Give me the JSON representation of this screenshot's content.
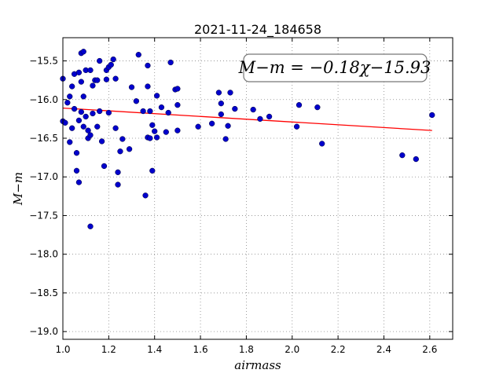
{
  "chart_data": {
    "type": "scatter",
    "title": "2021-11-24_184658",
    "xlabel": "airmass",
    "ylabel": "M−m",
    "xlim": [
      1.0,
      2.7
    ],
    "ylim": [
      -19.1,
      -15.2
    ],
    "y_inverted": true,
    "grid": true,
    "xticks": [
      1.0,
      1.2,
      1.4,
      1.6,
      1.8,
      2.0,
      2.2,
      2.4,
      2.6
    ],
    "xtick_labels": [
      "1.0",
      "1.2",
      "1.4",
      "1.6",
      "1.8",
      "2.0",
      "2.2",
      "2.4",
      "2.6"
    ],
    "yticks": [
      -15.5,
      -16.0,
      -16.5,
      -17.0,
      -17.5,
      -18.0,
      -18.5,
      -19.0
    ],
    "ytick_labels": [
      "−15.5",
      "−16.0",
      "−16.5",
      "−17.0",
      "−17.5",
      "−18.0",
      "−18.5",
      "−19.0"
    ],
    "annotation": "M−m = −0.18χ−15.93",
    "fit": {
      "slope": -0.18,
      "intercept": -15.93,
      "x_range": [
        1.0,
        2.61
      ],
      "color": "#ff0000"
    },
    "point_color": "#0000cc",
    "points": [
      [
        1.0,
        -15.73
      ],
      [
        1.0,
        -16.28
      ],
      [
        1.01,
        -16.3
      ],
      [
        1.02,
        -16.04
      ],
      [
        1.03,
        -15.96
      ],
      [
        1.03,
        -16.55
      ],
      [
        1.04,
        -15.83
      ],
      [
        1.04,
        -16.37
      ],
      [
        1.05,
        -15.67
      ],
      [
        1.05,
        -16.12
      ],
      [
        1.06,
        -16.69
      ],
      [
        1.06,
        -16.92
      ],
      [
        1.07,
        -15.65
      ],
      [
        1.07,
        -17.07
      ],
      [
        1.07,
        -16.27
      ],
      [
        1.08,
        -15.4
      ],
      [
        1.08,
        -15.77
      ],
      [
        1.08,
        -16.16
      ],
      [
        1.09,
        -15.38
      ],
      [
        1.09,
        -15.96
      ],
      [
        1.09,
        -16.35
      ],
      [
        1.1,
        -15.62
      ],
      [
        1.1,
        -16.22
      ],
      [
        1.11,
        -16.4
      ],
      [
        1.11,
        -16.5
      ],
      [
        1.12,
        -15.62
      ],
      [
        1.12,
        -16.46
      ],
      [
        1.12,
        -17.64
      ],
      [
        1.13,
        -15.82
      ],
      [
        1.13,
        -16.18
      ],
      [
        1.14,
        -15.75
      ],
      [
        1.15,
        -15.75
      ],
      [
        1.15,
        -16.35
      ],
      [
        1.16,
        -16.15
      ],
      [
        1.16,
        -15.5
      ],
      [
        1.17,
        -16.54
      ],
      [
        1.18,
        -16.86
      ],
      [
        1.19,
        -15.62
      ],
      [
        1.19,
        -15.74
      ],
      [
        1.2,
        -16.17
      ],
      [
        1.2,
        -15.58
      ],
      [
        1.21,
        -15.55
      ],
      [
        1.22,
        -15.48
      ],
      [
        1.23,
        -15.73
      ],
      [
        1.23,
        -16.37
      ],
      [
        1.24,
        -16.94
      ],
      [
        1.24,
        -17.1
      ],
      [
        1.25,
        -16.67
      ],
      [
        1.26,
        -16.51
      ],
      [
        1.29,
        -16.64
      ],
      [
        1.3,
        -15.84
      ],
      [
        1.32,
        -16.02
      ],
      [
        1.33,
        -15.42
      ],
      [
        1.35,
        -16.15
      ],
      [
        1.36,
        -17.24
      ],
      [
        1.37,
        -15.83
      ],
      [
        1.37,
        -15.56
      ],
      [
        1.37,
        -16.49
      ],
      [
        1.38,
        -16.5
      ],
      [
        1.38,
        -16.15
      ],
      [
        1.39,
        -16.33
      ],
      [
        1.39,
        -16.92
      ],
      [
        1.4,
        -16.41
      ],
      [
        1.41,
        -15.95
      ],
      [
        1.41,
        -16.49
      ],
      [
        1.43,
        -16.1
      ],
      [
        1.45,
        -16.42
      ],
      [
        1.46,
        -16.17
      ],
      [
        1.47,
        -15.52
      ],
      [
        1.49,
        -15.87
      ],
      [
        1.5,
        -15.86
      ],
      [
        1.5,
        -16.07
      ],
      [
        1.5,
        -16.4
      ],
      [
        1.59,
        -16.35
      ],
      [
        1.65,
        -16.31
      ],
      [
        1.68,
        -15.91
      ],
      [
        1.69,
        -16.05
      ],
      [
        1.69,
        -16.19
      ],
      [
        1.71,
        -16.51
      ],
      [
        1.72,
        -16.34
      ],
      [
        1.73,
        -15.91
      ],
      [
        1.75,
        -16.12
      ],
      [
        1.83,
        -16.13
      ],
      [
        1.86,
        -16.25
      ],
      [
        1.9,
        -16.22
      ],
      [
        2.02,
        -16.35
      ],
      [
        2.03,
        -16.07
      ],
      [
        2.11,
        -16.1
      ],
      [
        2.13,
        -16.57
      ],
      [
        2.48,
        -16.72
      ],
      [
        2.54,
        -16.77
      ],
      [
        2.61,
        -16.2
      ]
    ]
  }
}
